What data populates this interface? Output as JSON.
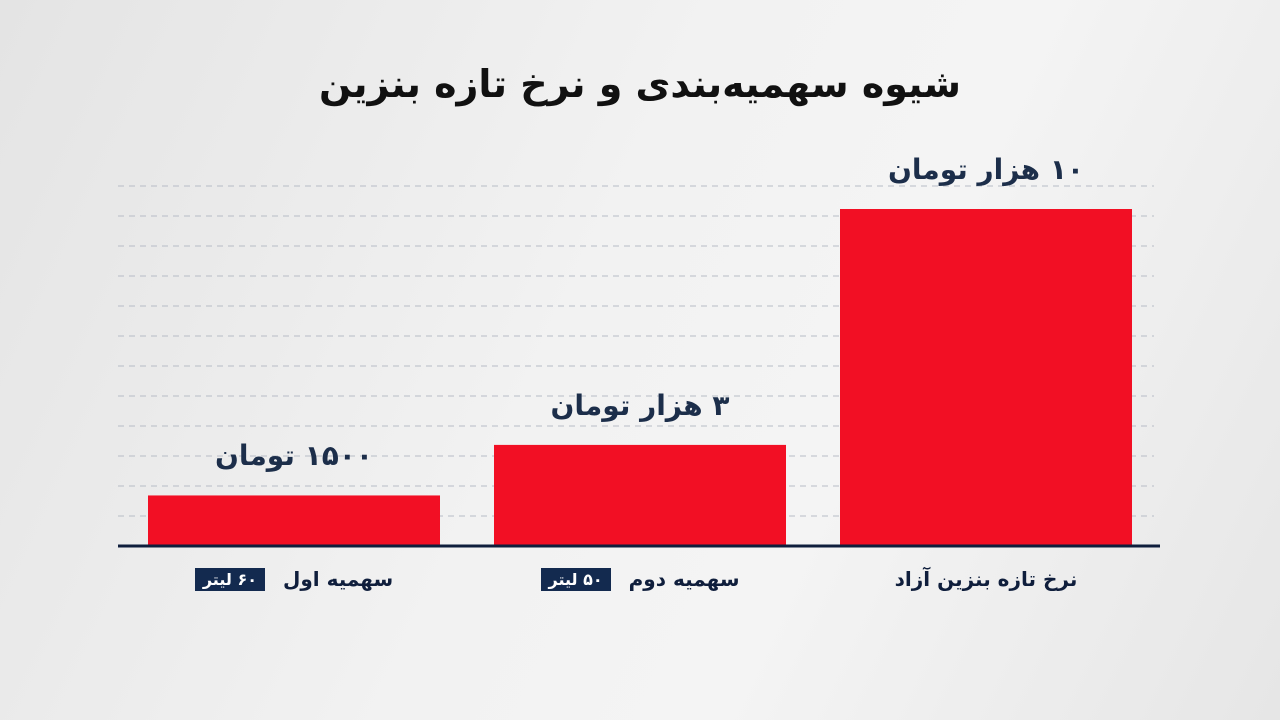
{
  "chart_data": {
    "type": "bar",
    "title": "شیوه سهمیه‌بندی و نرخ تازه بنزین",
    "categories": [
      "سهمیه اول",
      "سهمیه دوم",
      "نرخ تازه بنزین آزاد"
    ],
    "values": [
      1500,
      3000,
      10000
    ],
    "value_labels": [
      "۱۵۰۰ تومان",
      "۳ هزار تومان",
      "۱۰ هزار تومان"
    ],
    "quota_badges": [
      "۶۰ لیتر",
      "۵۰ لیتر",
      ""
    ],
    "xlabel": "",
    "ylabel": "",
    "grid": true,
    "legend": "none"
  },
  "colors": {
    "bar": "#f20f24",
    "axis": "#0f1e3c",
    "grid": "#b7bcc6",
    "badge": "#132a4f",
    "text": "#111111"
  }
}
